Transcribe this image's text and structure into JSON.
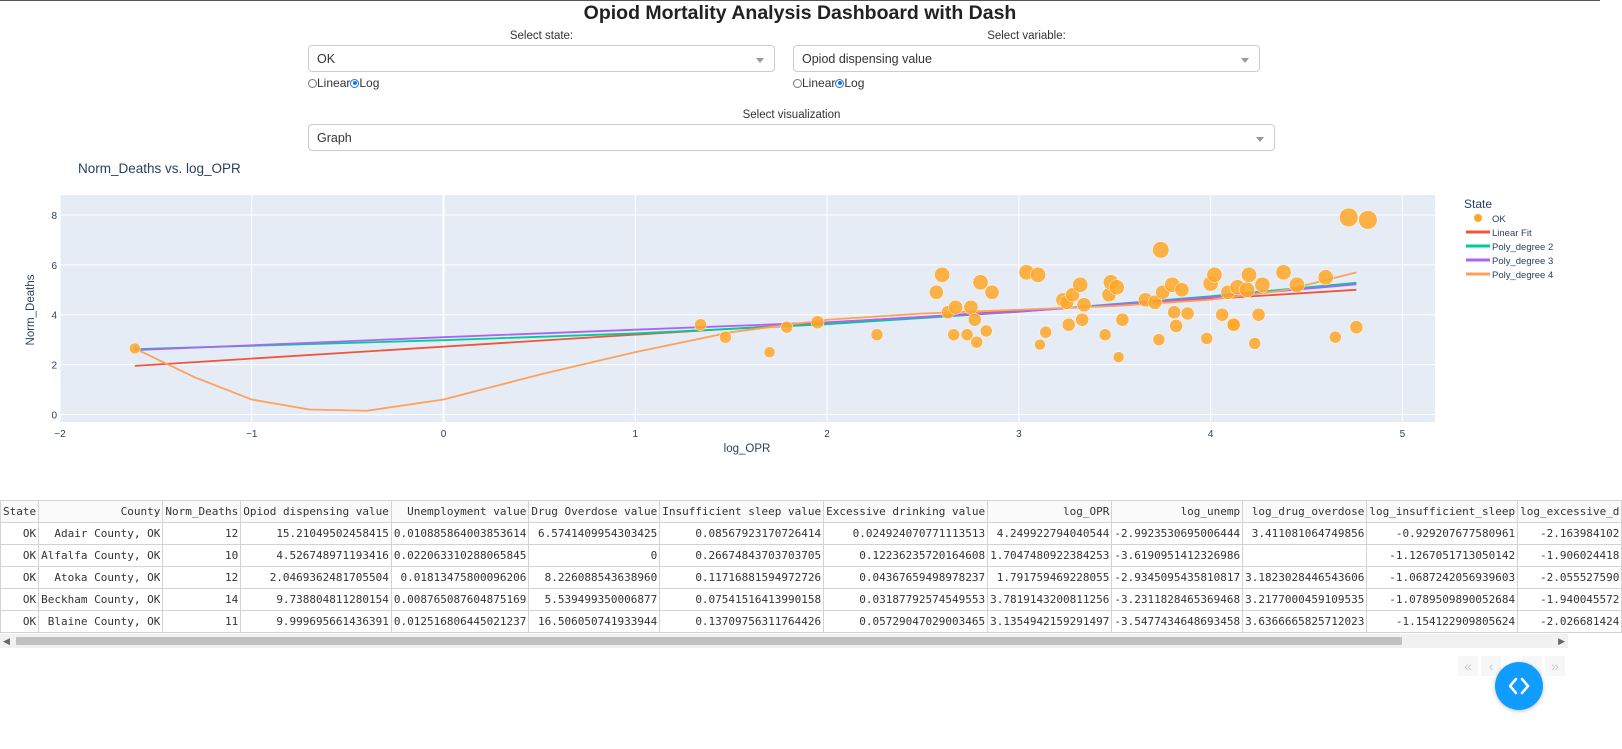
{
  "header": {
    "title": "Opiod Mortality Analysis Dashboard with Dash"
  },
  "controls": {
    "state_label": "Select state:",
    "state_value": "OK",
    "variable_label": "Select variable:",
    "variable_value": "Opiod dispensing value",
    "scale_left": {
      "linear": "Linear",
      "log": "Log",
      "selected": "Log"
    },
    "scale_right": {
      "linear": "Linear",
      "log": "Log",
      "selected": "Log"
    },
    "viz_label": "Select visualization",
    "viz_value": "Graph"
  },
  "chart_data": {
    "type": "scatter",
    "title": "Norm_Deaths vs. log_OPR",
    "xlabel": "log_OPR",
    "ylabel": "Norm_Deaths",
    "xlim": [
      -2,
      5.17
    ],
    "ylim": [
      -0.3,
      8.8
    ],
    "xticks": [
      -2,
      -1,
      0,
      1,
      2,
      3,
      4,
      5
    ],
    "yticks": [
      0,
      2,
      4,
      6,
      8
    ],
    "legend_title": "State",
    "legend_position": "right",
    "colors": {
      "OK": "#ffa726",
      "Linear Fit": "#ef553b",
      "Poly_degree 2": "#00cc96",
      "Poly_degree 3": "#ab63fa",
      "Poly_degree 4": "#ffa15a",
      "plot_bg": "#e5ecf6"
    },
    "series": [
      {
        "name": "OK",
        "mode": "markers",
        "points": [
          [
            -1.61,
            2.65,
            10
          ],
          [
            1.34,
            3.6,
            11
          ],
          [
            1.47,
            3.1,
            11
          ],
          [
            1.7,
            2.5,
            10
          ],
          [
            1.79,
            3.5,
            11
          ],
          [
            1.95,
            3.7,
            12
          ],
          [
            2.26,
            3.2,
            11
          ],
          [
            2.57,
            4.9,
            13
          ],
          [
            2.6,
            5.6,
            14
          ],
          [
            2.63,
            4.1,
            12
          ],
          [
            2.66,
            3.2,
            11
          ],
          [
            2.67,
            4.3,
            13
          ],
          [
            2.73,
            3.2,
            11
          ],
          [
            2.75,
            4.3,
            13
          ],
          [
            2.77,
            3.8,
            12
          ],
          [
            2.78,
            2.9,
            11
          ],
          [
            2.8,
            5.3,
            14
          ],
          [
            2.83,
            3.35,
            11
          ],
          [
            2.86,
            4.9,
            13
          ],
          [
            3.04,
            5.7,
            14
          ],
          [
            3.1,
            5.6,
            14
          ],
          [
            3.11,
            2.8,
            10
          ],
          [
            3.14,
            3.3,
            11
          ],
          [
            3.23,
            4.6,
            13
          ],
          [
            3.25,
            4.5,
            13
          ],
          [
            3.26,
            3.6,
            12
          ],
          [
            3.28,
            4.8,
            13
          ],
          [
            3.32,
            5.2,
            14
          ],
          [
            3.33,
            3.8,
            12
          ],
          [
            3.34,
            4.4,
            13
          ],
          [
            3.45,
            3.2,
            11
          ],
          [
            3.47,
            4.8,
            13
          ],
          [
            3.48,
            5.3,
            14
          ],
          [
            3.51,
            5.1,
            14
          ],
          [
            3.52,
            2.3,
            10
          ],
          [
            3.54,
            3.8,
            12
          ],
          [
            3.66,
            4.6,
            13
          ],
          [
            3.71,
            4.5,
            13
          ],
          [
            3.73,
            3.0,
            11
          ],
          [
            3.74,
            6.6,
            15
          ],
          [
            3.75,
            4.9,
            13
          ],
          [
            3.8,
            5.2,
            14
          ],
          [
            3.81,
            4.1,
            12
          ],
          [
            3.82,
            3.55,
            12
          ],
          [
            3.85,
            5.0,
            13
          ],
          [
            3.88,
            4.05,
            12
          ],
          [
            3.98,
            3.05,
            11
          ],
          [
            4.0,
            5.25,
            14
          ],
          [
            4.02,
            5.6,
            14
          ],
          [
            4.06,
            4.0,
            12
          ],
          [
            4.09,
            4.9,
            13
          ],
          [
            4.12,
            3.6,
            12
          ],
          [
            4.12,
            3.6,
            12
          ],
          [
            4.14,
            5.1,
            14
          ],
          [
            4.19,
            5.0,
            14
          ],
          [
            4.2,
            5.6,
            14
          ],
          [
            4.23,
            2.85,
            11
          ],
          [
            4.25,
            4.0,
            12
          ],
          [
            4.27,
            5.2,
            14
          ],
          [
            4.38,
            5.7,
            14
          ],
          [
            4.45,
            5.2,
            14
          ],
          [
            4.6,
            5.5,
            14
          ],
          [
            4.65,
            3.1,
            11
          ],
          [
            4.72,
            7.9,
            17
          ],
          [
            4.76,
            3.5,
            12
          ],
          [
            4.82,
            7.8,
            17
          ]
        ]
      },
      {
        "name": "Linear Fit",
        "mode": "lines",
        "x": [
          -1.61,
          4.76
        ],
        "y": [
          1.95,
          5.0
        ]
      },
      {
        "name": "Poly_degree 2",
        "mode": "lines",
        "x": [
          -1.61,
          0,
          1,
          2,
          3,
          4,
          4.76
        ],
        "y": [
          2.62,
          2.98,
          3.25,
          3.62,
          4.12,
          4.74,
          5.28
        ]
      },
      {
        "name": "Poly_degree 3",
        "mode": "lines",
        "x": [
          -1.61,
          0,
          1,
          2,
          3,
          4,
          4.76
        ],
        "y": [
          2.58,
          3.1,
          3.4,
          3.7,
          4.12,
          4.7,
          5.22
        ]
      },
      {
        "name": "Poly_degree 4",
        "mode": "lines",
        "x": [
          -1.61,
          -1.3,
          -1.0,
          -0.7,
          -0.4,
          0,
          0.5,
          1.0,
          1.5,
          2.0,
          2.5,
          3.0,
          3.5,
          4.0,
          4.4,
          4.76
        ],
        "y": [
          2.65,
          1.5,
          0.6,
          0.2,
          0.15,
          0.6,
          1.6,
          2.5,
          3.3,
          3.8,
          4.05,
          4.2,
          4.35,
          4.6,
          5.0,
          5.7
        ]
      }
    ]
  },
  "table": {
    "columns": [
      "State",
      "County",
      "Norm_Deaths",
      "Opiod dispensing value",
      "Unemployment value",
      "Drug Overdose value",
      "Insufficient sleep value",
      "Excessive drinking value",
      "log_OPR",
      "log_unemp",
      "log_drug_overdose",
      "log_insufficient_sleep",
      "log_excessive_d"
    ],
    "rows": [
      [
        "OK",
        "Adair County, OK",
        "12",
        "15.21049502458415",
        "0.010885864003853614",
        "6.5741409954303425",
        "0.08567923170726414",
        "0.024924070771113513",
        "4.249922794040544",
        "-2.9923530695006444",
        "3.411081064749856",
        "-0.929207677580961",
        "-2.163984102"
      ],
      [
        "OK",
        "Alfalfa County, OK",
        "10",
        "4.526748971193416",
        "0.022063310288065845",
        "0",
        "0.26674843703703705",
        "0.12236235720164608",
        "1.7047480922384253",
        "-3.6190951412326986",
        "",
        "-1.1267051713050142",
        "-1.906024418"
      ],
      [
        "OK",
        "Atoka County, OK",
        "12",
        "2.0469362481705504",
        "0.01813475800096206",
        "8.226088543638960",
        "0.11716881594972726",
        "0.04367659498978237",
        "1.791759469228055",
        "-2.9345095435810817",
        "3.1823028446543606",
        "-1.0687242056939603",
        "-2.055527590"
      ],
      [
        "OK",
        "Beckham County, OK",
        "14",
        "9.738804811280154",
        "0.008765087604875169",
        "5.539499350006877",
        "0.07541516413990158",
        "0.03187792574549553",
        "3.7819143200811256",
        "-3.2311828465369468",
        "3.2177000459109535",
        "-1.0789509890052684",
        "-1.940045572"
      ],
      [
        "OK",
        "Blaine County, OK",
        "11",
        "9.999695661436391",
        "0.012516806445021237",
        "16.506050741933944",
        "0.13709756311764426",
        "0.05729047029003465",
        "3.1354942159291497",
        "-3.5477434648693458",
        "3.6366665825712023",
        "-1.154122909805624",
        "-2.026681424"
      ]
    ]
  },
  "pager": {
    "first": "«",
    "prev": "‹",
    "next": "›",
    "last": "»"
  }
}
